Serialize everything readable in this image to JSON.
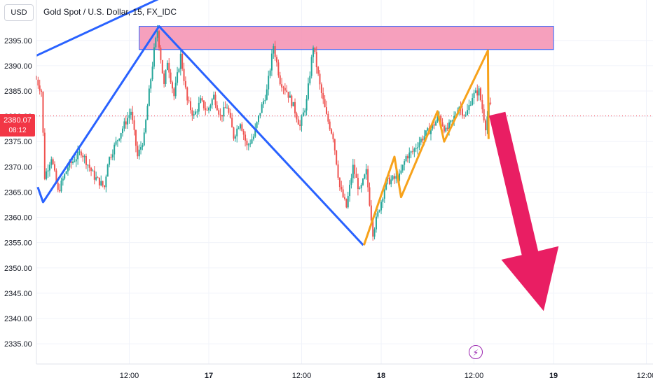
{
  "header": {
    "currency_label": "USD",
    "symbol_title": "Gold Spot / U.S. Dollar, 15, FX_IDC"
  },
  "last_price": {
    "price": "2380.07",
    "countdown": "08:12",
    "value": 2380.07
  },
  "colors": {
    "up": "#26a69a",
    "down": "#ef5350",
    "blue_line": "#2962ff",
    "orange_line": "#f7a21b",
    "resistance_fill": "#f48fb1",
    "arrow": "#e91e63",
    "price_tag": "#f23645",
    "event": "#9c27b0"
  },
  "event_icon": "lightning-icon",
  "chart_data": {
    "type": "candlestick",
    "title": "Gold Spot / U.S. Dollar, 15, FX_IDC",
    "ylim": [
      2331,
      2403
    ],
    "y_ticks": [
      2395,
      2390,
      2385,
      2380,
      2375,
      2370,
      2365,
      2360,
      2355,
      2350,
      2345,
      2340,
      2335
    ],
    "y_tick_labels": [
      "2395.00",
      "2390.00",
      "2385.00",
      "2380.00",
      "2375.00",
      "2370.00",
      "2365.00",
      "2360.00",
      "2355.00",
      "2350.00",
      "2345.00",
      "2340.00",
      "2335.00"
    ],
    "x_labels": [
      {
        "t": 14,
        "label": "12:00"
      },
      {
        "t": 26,
        "label": "17"
      },
      {
        "t": 40,
        "label": "12:00"
      },
      {
        "t": 52,
        "label": "18"
      },
      {
        "t": 66,
        "label": "12:00"
      },
      {
        "t": 78,
        "label": "19"
      },
      {
        "t": 92,
        "label": "12:00"
      }
    ],
    "x_range": [
      0,
      93
    ],
    "grid": true,
    "current_price": 2380.07,
    "price_path": [
      [
        0.0,
        2388
      ],
      [
        1.0,
        2385
      ],
      [
        1.5,
        2368
      ],
      [
        2.5,
        2372
      ],
      [
        3.5,
        2365
      ],
      [
        5,
        2370
      ],
      [
        7,
        2373
      ],
      [
        9,
        2368
      ],
      [
        10.5,
        2366
      ],
      [
        11,
        2371
      ],
      [
        13,
        2377
      ],
      [
        14.5,
        2381
      ],
      [
        15.5,
        2372
      ],
      [
        16.5,
        2376
      ],
      [
        17,
        2382
      ],
      [
        18,
        2393
      ],
      [
        18.5,
        2397
      ],
      [
        19.5,
        2386
      ],
      [
        20,
        2391
      ],
      [
        21,
        2384
      ],
      [
        22,
        2392
      ],
      [
        23,
        2383
      ],
      [
        24,
        2380
      ],
      [
        25,
        2383
      ],
      [
        26,
        2381
      ],
      [
        27,
        2384
      ],
      [
        28,
        2380
      ],
      [
        29,
        2382
      ],
      [
        30,
        2376
      ],
      [
        31,
        2379
      ],
      [
        32,
        2374
      ],
      [
        33,
        2376
      ],
      [
        34,
        2381
      ],
      [
        35,
        2385
      ],
      [
        36,
        2394
      ],
      [
        37,
        2387
      ],
      [
        38,
        2385
      ],
      [
        39,
        2382
      ],
      [
        40,
        2378
      ],
      [
        41,
        2383
      ],
      [
        42,
        2394
      ],
      [
        43,
        2386
      ],
      [
        44,
        2380
      ],
      [
        45,
        2376
      ],
      [
        46,
        2366
      ],
      [
        47,
        2362
      ],
      [
        48,
        2370
      ],
      [
        49,
        2365
      ],
      [
        50,
        2369
      ],
      [
        51,
        2357
      ],
      [
        52,
        2362
      ],
      [
        53,
        2367
      ],
      [
        55,
        2368
      ],
      [
        56,
        2372
      ],
      [
        57,
        2373
      ],
      [
        58,
        2375
      ],
      [
        60,
        2378
      ],
      [
        61,
        2380
      ],
      [
        62,
        2377
      ],
      [
        63,
        2379
      ],
      [
        64,
        2382
      ],
      [
        65,
        2380
      ],
      [
        66,
        2384
      ],
      [
        67,
        2385
      ],
      [
        68,
        2378
      ],
      [
        68.5,
        2382
      ]
    ],
    "drawings": {
      "resistance_zone": {
        "t_start": 15.5,
        "t_end": 78,
        "price_low": 2393.2,
        "price_high": 2397.8
      },
      "blue_trend_top": [
        [
          0,
          2392
        ],
        [
          23,
          2406
        ]
      ],
      "blue_path": [
        [
          0.2,
          2366
        ],
        [
          1,
          2363
        ],
        [
          18.5,
          2397.8
        ],
        [
          49.3,
          2354.5
        ]
      ],
      "orange_path": [
        [
          49.4,
          2354.5
        ],
        [
          54,
          2372
        ],
        [
          55,
          2364
        ],
        [
          60.5,
          2381
        ],
        [
          61.5,
          2375
        ],
        [
          68.1,
          2393
        ],
        [
          68.2,
          2375.5
        ]
      ],
      "projection_arrow": {
        "from": [
          69.5,
          2380.5
        ],
        "to": [
          76.5,
          2341.5
        ]
      }
    }
  }
}
